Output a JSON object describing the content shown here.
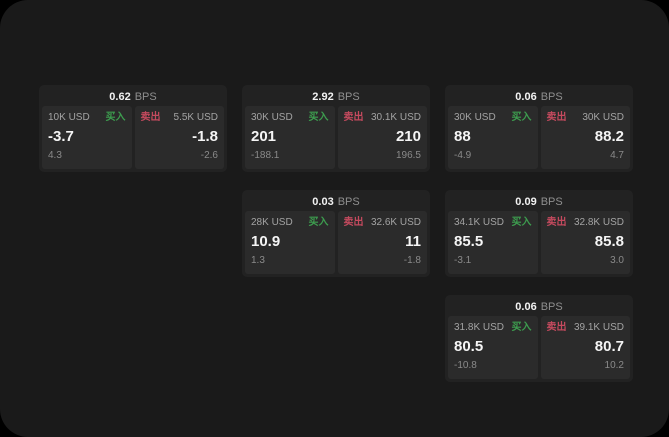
{
  "labels": {
    "bps": "BPS",
    "buy": "买入",
    "sell": "卖出"
  },
  "colors": {
    "background": "#000000",
    "container_bg": "#1a1a1a",
    "card_bg": "#222222",
    "panel_bg": "#2b2b2b",
    "buy_green": "#3d9e4f",
    "sell_red": "#c44a5e",
    "value_white": "#f5f5f5",
    "label_gray": "#a3a3a3"
  },
  "cards": [
    {
      "bps": "0.62",
      "buy": {
        "amount": "10K USD",
        "value": "-3.7",
        "sub": "4.3"
      },
      "sell": {
        "amount": "5.5K USD",
        "value": "-1.8",
        "sub": "-2.6"
      }
    },
    {
      "bps": "2.92",
      "buy": {
        "amount": "30K USD",
        "value": "201",
        "sub": "-188.1"
      },
      "sell": {
        "amount": "30.1K USD",
        "value": "210",
        "sub": "196.5"
      }
    },
    {
      "bps": "0.06",
      "buy": {
        "amount": "30K USD",
        "value": "88",
        "sub": "-4.9"
      },
      "sell": {
        "amount": "30K USD",
        "value": "88.2",
        "sub": "4.7"
      }
    },
    {
      "bps": "0.03",
      "buy": {
        "amount": "28K USD",
        "value": "10.9",
        "sub": "1.3"
      },
      "sell": {
        "amount": "32.6K USD",
        "value": "11",
        "sub": "-1.8"
      }
    },
    {
      "bps": "0.09",
      "buy": {
        "amount": "34.1K USD",
        "value": "85.5",
        "sub": "-3.1"
      },
      "sell": {
        "amount": "32.8K USD",
        "value": "85.8",
        "sub": "3.0"
      }
    },
    {
      "bps": "0.06",
      "buy": {
        "amount": "31.8K USD",
        "value": "80.5",
        "sub": "-10.8"
      },
      "sell": {
        "amount": "39.1K USD",
        "value": "80.7",
        "sub": "10.2"
      }
    }
  ]
}
